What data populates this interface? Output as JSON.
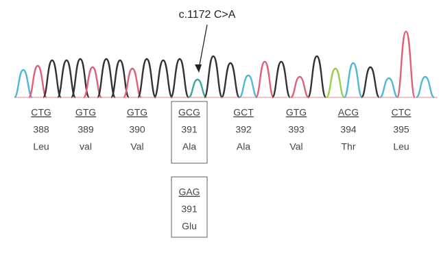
{
  "annotation": "c.1172 C>A",
  "codons": [
    {
      "codon": "CTG",
      "position": 388,
      "amino_acid": "Leu"
    },
    {
      "codon": "GTG",
      "position": 389,
      "amino_acid": "val"
    },
    {
      "codon": "GTG",
      "position": 390,
      "amino_acid": "Val"
    },
    {
      "codon": "GCG",
      "position": 391,
      "amino_acid": "Ala"
    },
    {
      "codon": "GCT",
      "position": 392,
      "amino_acid": "Ala"
    },
    {
      "codon": "GTG",
      "position": 393,
      "amino_acid": "Val"
    },
    {
      "codon": "ACG",
      "position": 394,
      "amino_acid": "Thr"
    },
    {
      "codon": "CTC",
      "position": 395,
      "amino_acid": "Leu"
    }
  ],
  "mutant": {
    "codon": "GAG",
    "position": 391,
    "amino_acid": "Glu"
  }
}
